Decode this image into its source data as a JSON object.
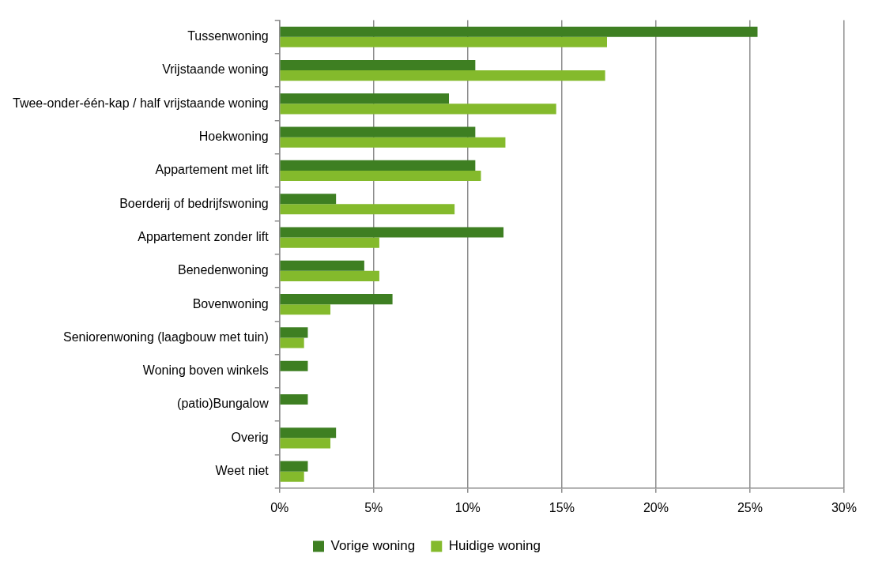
{
  "chart_data": {
    "type": "bar",
    "orientation": "horizontal",
    "categories": [
      "Tussenwoning",
      "Vrijstaande woning",
      "Twee-onder-één-kap / half vrijstaande woning",
      "Hoekwoning",
      "Appartement met lift",
      "Boerderij of bedrijfswoning",
      "Appartement zonder lift",
      "Benedenwoning",
      "Bovenwoning",
      "Seniorenwoning (laagbouw met tuin)",
      "Woning boven winkels",
      "(patio)Bungalow",
      "Overig",
      "Weet niet"
    ],
    "series": [
      {
        "name": "Vorige woning",
        "color": "#3e7f22",
        "values": [
          25.4,
          10.4,
          9.0,
          10.4,
          10.4,
          3.0,
          11.9,
          4.5,
          6.0,
          1.5,
          1.5,
          1.5,
          3.0,
          1.5
        ]
      },
      {
        "name": "Huidige woning",
        "color": "#84ba2c",
        "values": [
          17.4,
          17.3,
          14.7,
          12.0,
          10.7,
          9.3,
          5.3,
          5.3,
          2.7,
          1.3,
          null,
          null,
          2.7,
          1.3
        ]
      }
    ],
    "xlim": [
      0,
      30
    ],
    "xticks": [
      {
        "value": 0,
        "label": "0%"
      },
      {
        "value": 5,
        "label": "5%"
      },
      {
        "value": 10,
        "label": "10%"
      },
      {
        "value": 15,
        "label": "15%"
      },
      {
        "value": 20,
        "label": "20%"
      },
      {
        "value": 25,
        "label": "25%"
      },
      {
        "value": 30,
        "label": "30%"
      }
    ],
    "grid": "x",
    "legend": "bottom"
  }
}
